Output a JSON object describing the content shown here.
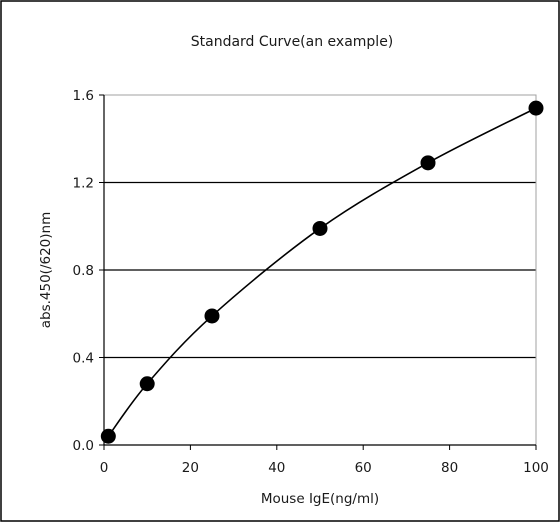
{
  "chart_data": {
    "type": "scatter",
    "title": "Standard Curve(an example)",
    "xlabel": "Mouse IgE(ng/ml)",
    "ylabel": "abs.450(∕620)nm",
    "xlim": [
      0,
      100
    ],
    "ylim": [
      0.0,
      1.6
    ],
    "x_ticks": [
      "0",
      "20",
      "40",
      "60",
      "80",
      "100"
    ],
    "y_ticks": [
      "0.0",
      "0.4",
      "0.8",
      "1.2",
      "1.6"
    ],
    "grid": "horizontal",
    "legend": "none",
    "series": [
      {
        "x": [
          1,
          10,
          25,
          50,
          75,
          100
        ],
        "y": [
          0.04,
          0.28,
          0.59,
          0.99,
          1.29,
          1.54
        ],
        "marker": "filled-circle",
        "line": "smooth"
      }
    ]
  },
  "colors": {
    "border": "#000000",
    "plot_border": "#a0a0a0",
    "grid": "#000000",
    "marker": "#000000",
    "background": "#ffffff"
  }
}
